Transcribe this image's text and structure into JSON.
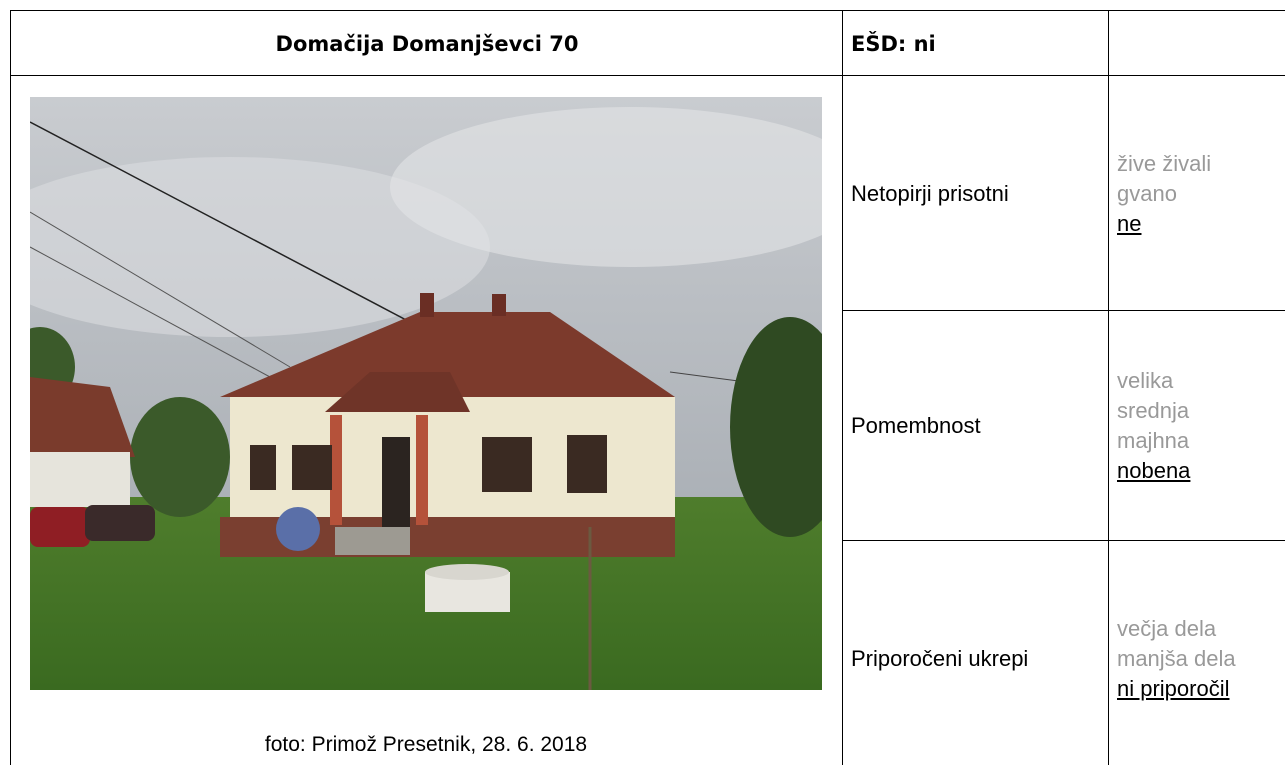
{
  "header": {
    "title": "Domačija Domanjševci 70",
    "esd": "EŠD: ni"
  },
  "photo": {
    "caption": "foto: Primož Presetnik, 28. 6. 2018"
  },
  "rows": [
    {
      "label": "Netopirji prisotni",
      "options": [
        "žive živali",
        "gvano",
        "ne"
      ],
      "selected": 2
    },
    {
      "label": "Pomembnost",
      "options": [
        "velika",
        "srednja",
        "majhna",
        "nobena"
      ],
      "selected": 3
    },
    {
      "label": "Priporočeni ukrepi",
      "options": [
        "večja dela",
        "manjša dela",
        "ni priporočil"
      ],
      "selected": 2
    }
  ]
}
